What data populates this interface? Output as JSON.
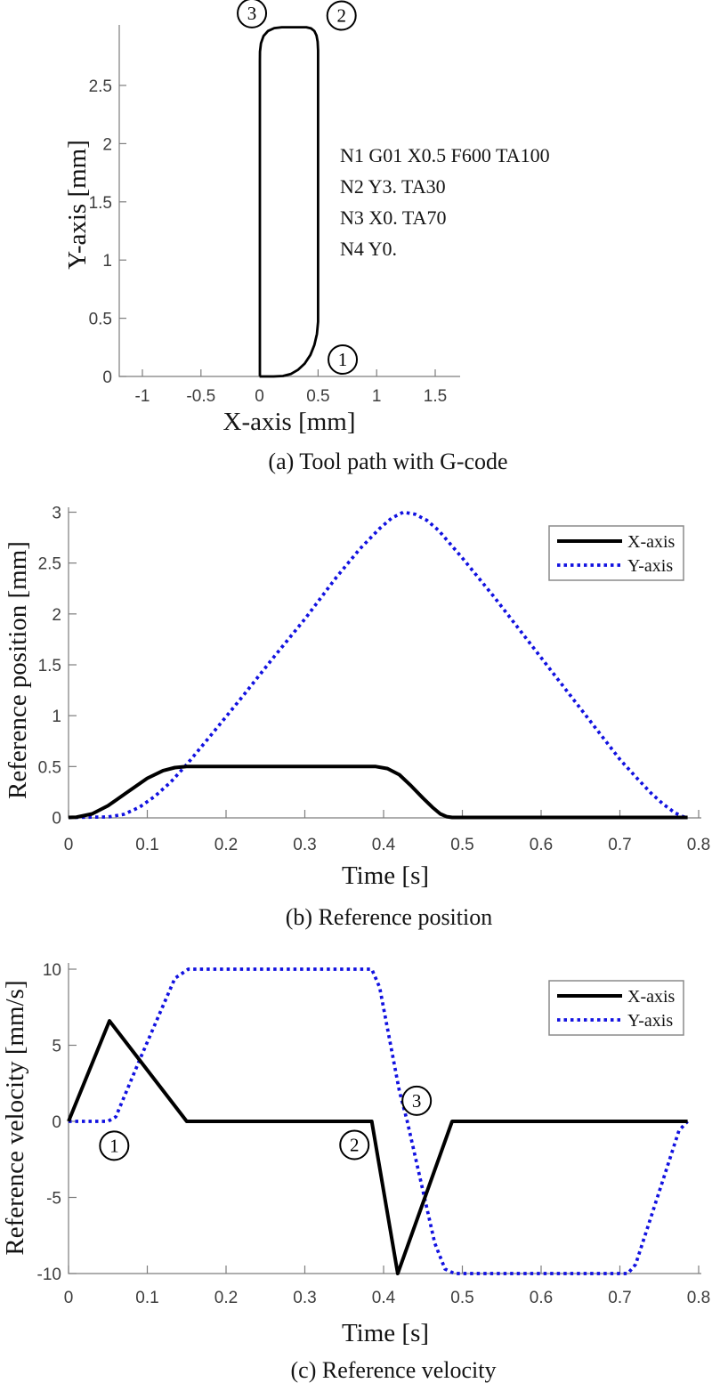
{
  "colors": {
    "curve_x": "#000000",
    "curve_y": "#1111e0",
    "axis": "#7d7d7d",
    "text": "#141414"
  },
  "chart_data": [
    {
      "id": "a",
      "type": "line",
      "caption": "(a) Tool path with G-code",
      "xlabel": "X-axis [mm]",
      "ylabel": "Y-axis [mm]",
      "xlim": [
        -1.2,
        1.72
      ],
      "ylim": [
        0,
        3.05
      ],
      "grid": false,
      "xticks": [
        -1,
        -0.5,
        0,
        0.5,
        1,
        1.5
      ],
      "yticks": [
        0,
        0.5,
        1,
        1.5,
        2,
        2.5
      ],
      "gcode": [
        "N1 G01 X0.5 F600 TA100",
        "N2 Y3. TA30",
        "N3 X0. TA70",
        "N4 Y0."
      ],
      "toolpath_points": [
        [
          0,
          0
        ],
        [
          0.12,
          0
        ],
        [
          0.2,
          0.004
        ],
        [
          0.27,
          0.022
        ],
        [
          0.33,
          0.058
        ],
        [
          0.385,
          0.11
        ],
        [
          0.435,
          0.185
        ],
        [
          0.468,
          0.27
        ],
        [
          0.49,
          0.365
        ],
        [
          0.5,
          0.47
        ],
        [
          0.5,
          2.8
        ],
        [
          0.496,
          2.875
        ],
        [
          0.486,
          2.93
        ],
        [
          0.468,
          2.968
        ],
        [
          0.44,
          2.99
        ],
        [
          0.4,
          3.0
        ],
        [
          0.19,
          3.0
        ],
        [
          0.125,
          2.992
        ],
        [
          0.072,
          2.968
        ],
        [
          0.034,
          2.925
        ],
        [
          0.012,
          2.862
        ],
        [
          0.004,
          2.79
        ],
        [
          0.003,
          2.71
        ],
        [
          0.003,
          0.005
        ],
        [
          0,
          0
        ]
      ],
      "annotations": [
        {
          "x": 0.71,
          "y": 0.145,
          "label": "1"
        },
        {
          "x": 0.7,
          "y": 3.1,
          "label": "2"
        },
        {
          "x": -0.065,
          "y": 3.12,
          "label": "3"
        }
      ]
    },
    {
      "id": "b",
      "type": "line",
      "caption": "(b) Reference position",
      "xlabel": "Time [s]",
      "ylabel": "Reference position [mm]",
      "xlim": [
        0,
        0.8
      ],
      "ylim": [
        0,
        3.05
      ],
      "grid": false,
      "legend_position": "upper right",
      "xticks": [
        0,
        0.1,
        0.2,
        0.3,
        0.4,
        0.5,
        0.6,
        0.7,
        0.8
      ],
      "yticks": [
        0,
        0.5,
        1,
        1.5,
        2,
        2.5,
        3
      ],
      "series": [
        {
          "name": "X-axis",
          "style": "solid",
          "color": "#000000",
          "points": [
            [
              0,
              0
            ],
            [
              0.01,
              0.003
            ],
            [
              0.03,
              0.035
            ],
            [
              0.05,
              0.115
            ],
            [
              0.075,
              0.25
            ],
            [
              0.1,
              0.385
            ],
            [
              0.12,
              0.46
            ],
            [
              0.135,
              0.49
            ],
            [
              0.15,
              0.5
            ],
            [
              0.39,
              0.5
            ],
            [
              0.405,
              0.48
            ],
            [
              0.42,
              0.42
            ],
            [
              0.435,
              0.31
            ],
            [
              0.45,
              0.19
            ],
            [
              0.462,
              0.1
            ],
            [
              0.472,
              0.035
            ],
            [
              0.48,
              0.008
            ],
            [
              0.487,
              0
            ],
            [
              0.786,
              0
            ]
          ]
        },
        {
          "name": "Y-axis",
          "style": "dotted",
          "color": "#1111e0",
          "points": [
            [
              0,
              0
            ],
            [
              0.05,
              0.004
            ],
            [
              0.07,
              0.03
            ],
            [
              0.09,
              0.1
            ],
            [
              0.11,
              0.21
            ],
            [
              0.13,
              0.35
            ],
            [
              0.15,
              0.52
            ],
            [
              0.18,
              0.8
            ],
            [
              0.22,
              1.18
            ],
            [
              0.26,
              1.57
            ],
            [
              0.3,
              1.95
            ],
            [
              0.34,
              2.36
            ],
            [
              0.37,
              2.64
            ],
            [
              0.395,
              2.84
            ],
            [
              0.41,
              2.94
            ],
            [
              0.425,
              3.0
            ],
            [
              0.44,
              2.98
            ],
            [
              0.455,
              2.92
            ],
            [
              0.47,
              2.82
            ],
            [
              0.5,
              2.55
            ],
            [
              0.54,
              2.17
            ],
            [
              0.58,
              1.77
            ],
            [
              0.62,
              1.37
            ],
            [
              0.66,
              0.97
            ],
            [
              0.7,
              0.57
            ],
            [
              0.72,
              0.4
            ],
            [
              0.74,
              0.235
            ],
            [
              0.755,
              0.13
            ],
            [
              0.77,
              0.045
            ],
            [
              0.78,
              0.008
            ],
            [
              0.786,
              0
            ]
          ]
        }
      ]
    },
    {
      "id": "c",
      "type": "line",
      "caption": "(c) Reference velocity",
      "xlabel": "Time [s]",
      "ylabel": "Reference velocity [mm/s]",
      "xlim": [
        0,
        0.8
      ],
      "ylim": [
        -10,
        10
      ],
      "grid": false,
      "legend_position": "upper right",
      "xticks": [
        0,
        0.1,
        0.2,
        0.3,
        0.4,
        0.5,
        0.6,
        0.7,
        0.8
      ],
      "yticks": [
        -10,
        -5,
        0,
        5,
        10
      ],
      "series": [
        {
          "name": "X-axis",
          "style": "solid",
          "color": "#000000",
          "points": [
            [
              0,
              0
            ],
            [
              0.052,
              6.6
            ],
            [
              0.15,
              0
            ],
            [
              0.385,
              0
            ],
            [
              0.418,
              -10
            ],
            [
              0.487,
              0
            ],
            [
              0.786,
              0
            ]
          ]
        },
        {
          "name": "Y-axis",
          "style": "dotted",
          "color": "#1111e0",
          "points": [
            [
              0,
              0
            ],
            [
              0.05,
              0
            ],
            [
              0.06,
              0.3
            ],
            [
              0.09,
              4
            ],
            [
              0.135,
              9.4
            ],
            [
              0.152,
              10
            ],
            [
              0.385,
              10
            ],
            [
              0.395,
              8.8
            ],
            [
              0.42,
              2
            ],
            [
              0.43,
              0
            ],
            [
              0.465,
              -8
            ],
            [
              0.478,
              -9.7
            ],
            [
              0.49,
              -10
            ],
            [
              0.71,
              -10
            ],
            [
              0.72,
              -9.4
            ],
            [
              0.75,
              -4.6
            ],
            [
              0.775,
              -0.6
            ],
            [
              0.786,
              0
            ]
          ]
        }
      ],
      "annotations": [
        {
          "x": 0.058,
          "y": -1.6,
          "label": "1"
        },
        {
          "x": 0.363,
          "y": -1.55,
          "label": "2"
        },
        {
          "x": 0.442,
          "y": 1.35,
          "label": "3"
        }
      ]
    }
  ]
}
